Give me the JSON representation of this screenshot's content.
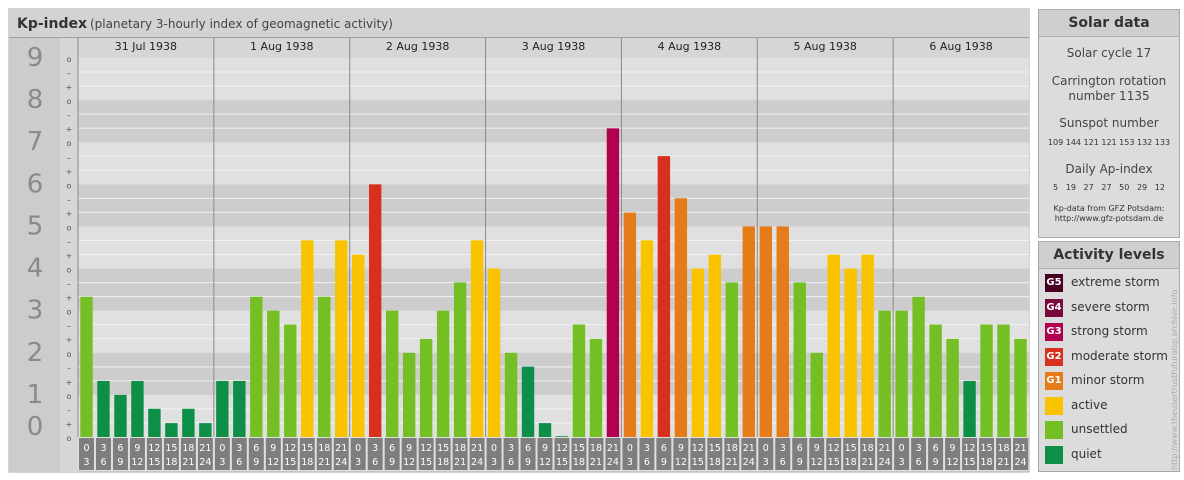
{
  "header": {
    "title": "Kp-index",
    "subtitle": "(planetary 3-hourly index of geomagnetic activity)"
  },
  "chart_data": {
    "type": "bar",
    "title": "Kp-index",
    "subtitle": "(planetary 3-hourly index of geomagnetic activity)",
    "ylim": [
      0,
      9
    ],
    "y_ticks": [
      "0",
      "1",
      "2",
      "3",
      "4",
      "5",
      "6",
      "7",
      "8",
      "9"
    ],
    "minor_tick_labels": [
      "+",
      "–",
      "o"
    ],
    "days": [
      "31 Jul 1938",
      "1 Aug 1938",
      "2 Aug 1938",
      "3 Aug 1938",
      "4 Aug 1938",
      "5 Aug 1938",
      "6 Aug 1938"
    ],
    "hour_labels": [
      {
        "top": "0",
        "bottom": "3"
      },
      {
        "top": "3",
        "bottom": "6"
      },
      {
        "top": "6",
        "bottom": "9"
      },
      {
        "top": "9",
        "bottom": "12"
      },
      {
        "top": "12",
        "bottom": "15"
      },
      {
        "top": "15",
        "bottom": "18"
      },
      {
        "top": "18",
        "bottom": "21"
      },
      {
        "top": "21",
        "bottom": "24"
      }
    ],
    "values": [
      3.33,
      1.33,
      1.0,
      1.33,
      0.67,
      0.33,
      0.67,
      0.33,
      1.33,
      1.33,
      3.33,
      3.0,
      2.67,
      4.67,
      3.33,
      4.67,
      4.33,
      6.0,
      3.0,
      2.0,
      2.33,
      3.0,
      3.67,
      4.67,
      4.0,
      2.0,
      1.67,
      0.33,
      0.0,
      2.67,
      2.33,
      7.33,
      5.33,
      4.67,
      6.67,
      5.67,
      4.0,
      4.33,
      3.67,
      5.0,
      5.0,
      5.0,
      3.67,
      2.0,
      4.33,
      4.0,
      4.33,
      3.0,
      3.0,
      3.33,
      2.67,
      2.33,
      1.33,
      2.67,
      2.67,
      2.33
    ],
    "colors": {
      "quiet": "#0e8f48",
      "unsettled": "#74bf23",
      "active": "#f9c300",
      "minor_storm": "#e67b1a",
      "moderate_storm": "#d7301f",
      "strong_storm": "#b0004f",
      "severe_storm": "#7a0a3c",
      "extreme_storm": "#4a0023"
    }
  },
  "solar": {
    "title": "Solar data",
    "cycle": "Solar cycle 17",
    "carrington_line1": "Carrington rotation",
    "carrington_line2": "number 1135",
    "sunspot_title": "Sunspot number",
    "sunspot_values": "109 144 121 121 153 132 133",
    "ap_title": "Daily Ap-index",
    "ap_values": "5   19   27   27   50   29   12",
    "source_line1": "Kp-data from GFZ Potsdam:",
    "source_line2": "http://www.gfz-potsdam.de"
  },
  "levels": {
    "title": "Activity levels",
    "items": [
      {
        "code": "G5",
        "label": "extreme storm",
        "color": "#4a0023"
      },
      {
        "code": "G4",
        "label": "severe storm",
        "color": "#7a0a3c"
      },
      {
        "code": "G3",
        "label": "strong storm",
        "color": "#b0004f"
      },
      {
        "code": "G2",
        "label": "moderate storm",
        "color": "#d7301f"
      },
      {
        "code": "G1",
        "label": "minor storm",
        "color": "#e67b1a"
      },
      {
        "code": "",
        "label": "active",
        "color": "#f9c300"
      },
      {
        "code": "",
        "label": "unsettled",
        "color": "#74bf23"
      },
      {
        "code": "",
        "label": "quiet",
        "color": "#0e8f48"
      }
    ]
  },
  "watermark": "http://www.theusertrustfuturalsp.archive.info"
}
